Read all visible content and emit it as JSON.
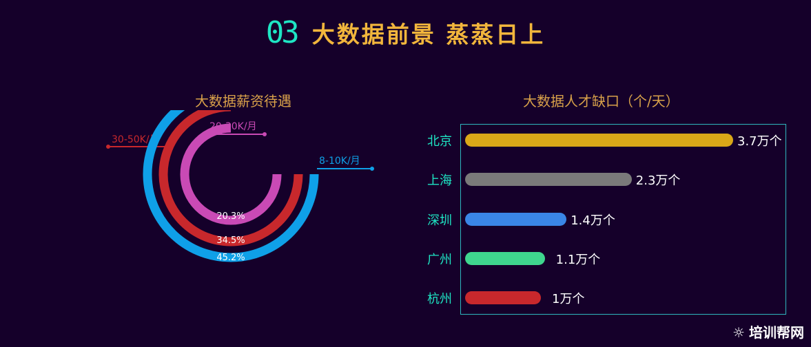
{
  "header": {
    "number": "03",
    "title": "大数据前景 蒸蒸日上"
  },
  "watermark": {
    "icon": "sun-face-icon",
    "text": "培训帮网"
  },
  "chart_data": [
    {
      "type": "radial-bar",
      "title": "大数据薪资待遇",
      "series": [
        {
          "name": "20-30K/月",
          "value": 20.3,
          "label": "20.3%",
          "color": "#c94ab5"
        },
        {
          "name": "30-50K/月",
          "value": 34.5,
          "label": "34.5%",
          "color": "#c8282c"
        },
        {
          "name": "8-10K/月",
          "value": 45.2,
          "label": "45.2%",
          "color": "#0fa0e8"
        }
      ]
    },
    {
      "type": "bar",
      "orientation": "horizontal",
      "title": "大数据人才缺口（个/天）",
      "categories": [
        "北京",
        "上海",
        "深圳",
        "广州",
        "杭州"
      ],
      "values": [
        3.7,
        2.3,
        1.4,
        1.1,
        1.0
      ],
      "value_labels": [
        "3.7万个",
        "2.3万个",
        "1.4万个",
        "1.1万个",
        "1万个"
      ],
      "unit": "万个",
      "colors": [
        "#d9a818",
        "#7a7a7a",
        "#3a86e6",
        "#3fd68e",
        "#c8282c"
      ]
    }
  ]
}
